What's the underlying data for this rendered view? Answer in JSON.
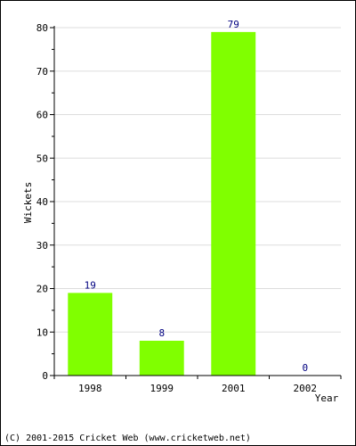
{
  "chart_data": {
    "type": "bar",
    "categories": [
      "1998",
      "1999",
      "2001",
      "2002"
    ],
    "values": [
      19,
      8,
      79,
      0
    ],
    "xlabel": "Year",
    "ylabel": "Wickets",
    "ylim": [
      0,
      80
    ],
    "yticks": [
      0,
      10,
      20,
      30,
      40,
      50,
      60,
      70,
      80
    ],
    "grid": true,
    "data_labels": true,
    "bar_color": "#80ff00",
    "label_color": "#000080"
  },
  "footer": {
    "copyright": "(C) 2001-2015 Cricket Web (www.cricketweb.net)"
  }
}
